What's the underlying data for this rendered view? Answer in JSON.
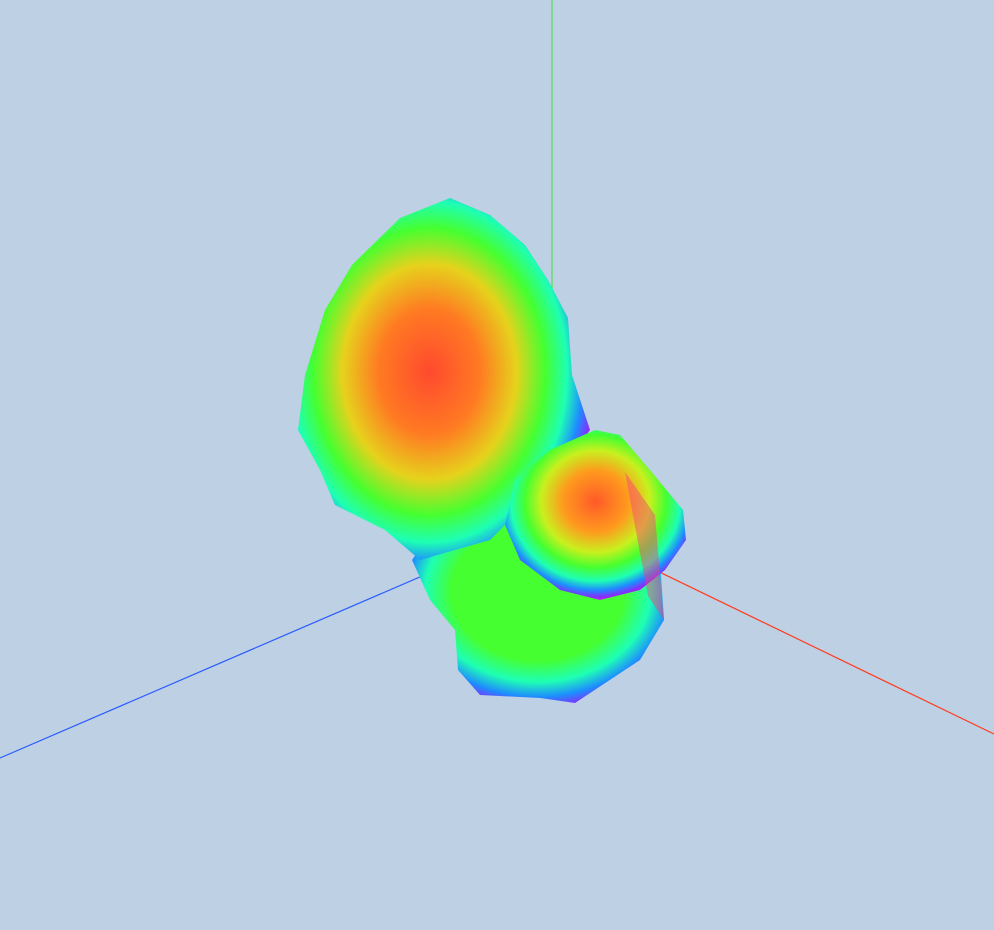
{
  "scene": {
    "background_color": "#bdd0e4",
    "axes": {
      "x_color": "#ff3c1e",
      "y_color": "#55dd55",
      "z_color": "#2a5cff"
    },
    "object": {
      "type": "blob-mesh",
      "shading": "normal-hue-gradient",
      "colors": [
        "#ff4040",
        "#ff8a1e",
        "#ffd21e",
        "#46ff30",
        "#1effb4",
        "#1e8cff",
        "#8c28ff",
        "#ff28c8"
      ]
    }
  }
}
